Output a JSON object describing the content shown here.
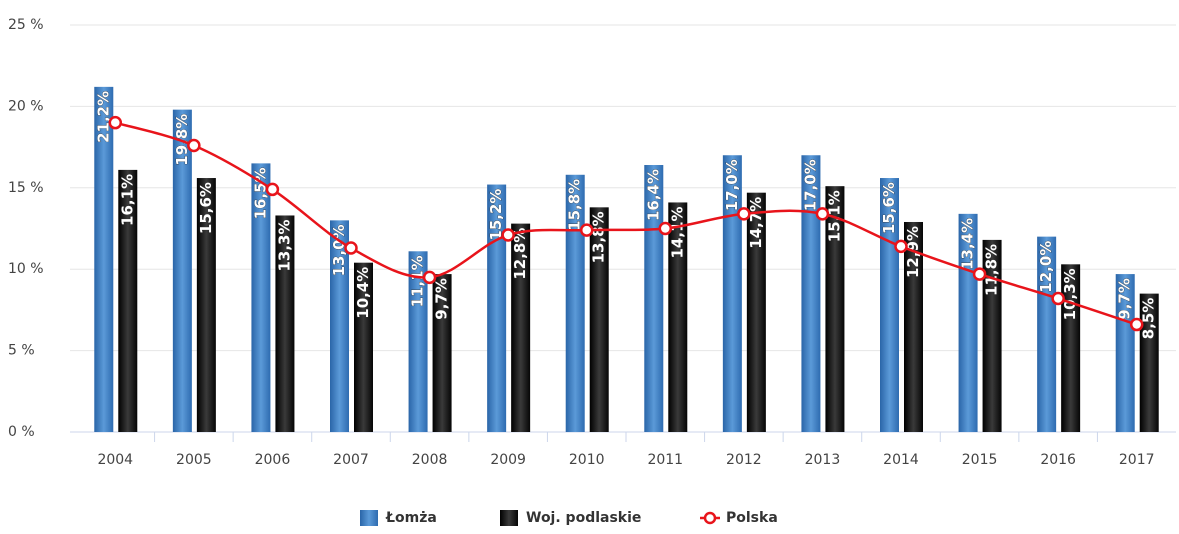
{
  "chart_data": {
    "type": "bar",
    "categories": [
      "2004",
      "2005",
      "2006",
      "2007",
      "2008",
      "2009",
      "2010",
      "2011",
      "2012",
      "2013",
      "2014",
      "2015",
      "2016",
      "2017"
    ],
    "series": [
      {
        "name": "Łomża",
        "color": "#3a7cc2",
        "values": [
          21.2,
          19.8,
          16.5,
          13.0,
          11.1,
          15.2,
          15.8,
          16.4,
          17.0,
          17.0,
          15.6,
          13.4,
          12.0,
          9.7
        ],
        "value_labels": [
          "21,2%",
          "19,8%",
          "16,5%",
          "13,0%",
          "11,1%",
          "15,2%",
          "15,8%",
          "16,4%",
          "17,0%",
          "17,0%",
          "15,6%",
          "13,4%",
          "12,0%",
          "9,7%"
        ]
      },
      {
        "name": "Woj. podlaskie",
        "color": "#111111",
        "values": [
          16.1,
          15.6,
          13.3,
          10.4,
          9.7,
          12.8,
          13.8,
          14.1,
          14.7,
          15.1,
          12.9,
          11.8,
          10.3,
          8.5
        ],
        "value_labels": [
          "16,1%",
          "15,6%",
          "13,3%",
          "10,4%",
          "9,7%",
          "12,8%",
          "13,8%",
          "14,1%",
          "14,7%",
          "15,1%",
          "12,9%",
          "11,8%",
          "10,3%",
          "8,5%"
        ]
      },
      {
        "name": "Polska",
        "type": "line",
        "color": "#e8141b",
        "values": [
          19.0,
          17.6,
          14.9,
          11.3,
          9.5,
          12.1,
          12.4,
          12.5,
          13.4,
          13.4,
          11.4,
          9.7,
          8.2,
          6.6
        ]
      }
    ],
    "ylim": [
      0,
      25
    ],
    "yticks": [
      {
        "value": 0,
        "label": "0 %"
      },
      {
        "value": 5,
        "label": "5 %"
      },
      {
        "value": 10,
        "label": "10 %"
      },
      {
        "value": 15,
        "label": "15 %"
      },
      {
        "value": 20,
        "label": "20 %"
      },
      {
        "value": 25,
        "label": "25 %"
      }
    ],
    "grid": true,
    "legend": "bottom"
  }
}
